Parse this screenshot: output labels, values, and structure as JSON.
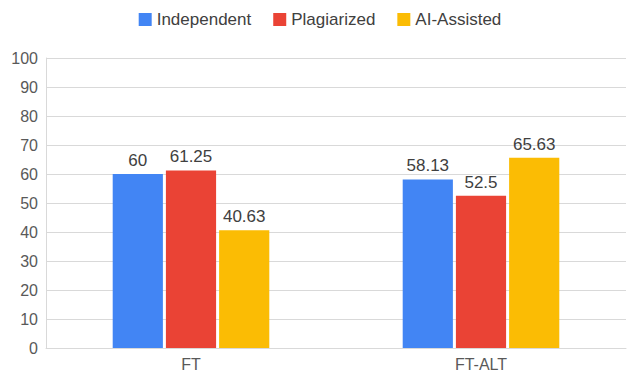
{
  "chart_data": {
    "type": "bar",
    "categories": [
      "FT",
      "FT-ALT"
    ],
    "series": [
      {
        "name": "Independent",
        "color": "#4285f4",
        "values": [
          60,
          58.13
        ]
      },
      {
        "name": "Plagiarized",
        "color": "#ea4335",
        "values": [
          61.25,
          52.5
        ]
      },
      {
        "name": "AI-Assisted",
        "color": "#fbbc04",
        "values": [
          40.63,
          65.63
        ]
      }
    ],
    "ylim": [
      0,
      100
    ],
    "yticks": [
      0,
      10,
      20,
      30,
      40,
      50,
      60,
      70,
      80,
      90,
      100
    ],
    "grid": true,
    "legend": "top",
    "data_labels": true
  }
}
